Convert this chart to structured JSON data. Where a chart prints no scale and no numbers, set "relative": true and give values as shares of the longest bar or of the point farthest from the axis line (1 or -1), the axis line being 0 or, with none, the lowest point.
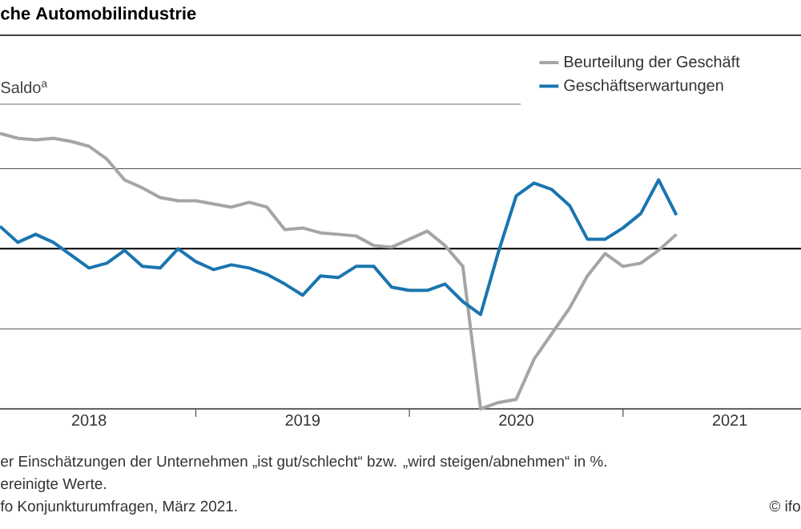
{
  "chart_data": {
    "type": "line",
    "title": "che Automobilindustrie",
    "ylabel": "Saldo$^{a}$",
    "relative": true,
    "grid": "y",
    "legend": "top right",
    "line_style": "solid",
    "marker": "none",
    "x": [
      "2018-02",
      "2018-03",
      "2018-04",
      "2018-05",
      "2018-06",
      "2018-07",
      "2018-08",
      "2018-09",
      "2018-10",
      "2018-11",
      "2018-12",
      "2019-01",
      "2019-02",
      "2019-03",
      "2019-04",
      "2019-05",
      "2019-06",
      "2019-07",
      "2019-08",
      "2019-09",
      "2019-10",
      "2019-11",
      "2019-12",
      "2020-01",
      "2020-02",
      "2020-03",
      "2020-04",
      "2020-05",
      "2020-06",
      "2020-07",
      "2020-08",
      "2020-09",
      "2020-10",
      "2020-11",
      "2020-12",
      "2021-01",
      "2021-02",
      "2021-03",
      "2021-04"
    ],
    "xlim": [
      "2018-02",
      "2021-11"
    ],
    "xticks": [
      {
        "value": "2018-07",
        "label": "2018"
      },
      {
        "value": "2019-01",
        "label": null
      },
      {
        "value": "2019-07",
        "label": "2019"
      },
      {
        "value": "2020-01",
        "label": null
      },
      {
        "value": "2020-07",
        "label": "2020"
      },
      {
        "value": "2021-01",
        "label": null
      },
      {
        "value": "2021-07",
        "label": "2021"
      }
    ],
    "series": [
      {
        "name": "Beurteilung der Geschäft",
        "color": "#a5a5a5",
        "values": [
          0.72,
          0.69,
          0.68,
          0.69,
          0.67,
          0.64,
          0.56,
          0.43,
          0.38,
          0.32,
          0.3,
          0.3,
          0.28,
          0.26,
          0.29,
          0.26,
          0.12,
          0.13,
          0.1,
          0.09,
          0.08,
          0.02,
          0.01,
          0.06,
          0.11,
          0.02,
          -0.11,
          -1.0,
          -0.96,
          -0.94,
          -0.69,
          -0.53,
          -0.37,
          -0.17,
          -0.03,
          -0.11,
          -0.09,
          -0.01,
          0.09
        ]
      },
      {
        "name": "Geschäftserwartungen",
        "color": "#1a75b0",
        "values": [
          0.14,
          0.04,
          0.09,
          0.04,
          -0.04,
          -0.12,
          -0.09,
          -0.01,
          -0.11,
          -0.12,
          0.0,
          -0.08,
          -0.13,
          -0.1,
          -0.12,
          -0.16,
          -0.22,
          -0.29,
          -0.17,
          -0.18,
          -0.11,
          -0.11,
          -0.24,
          -0.26,
          -0.26,
          -0.22,
          -0.33,
          -0.41,
          -0.02,
          0.33,
          0.41,
          0.37,
          0.27,
          0.06,
          0.06,
          0.13,
          0.22,
          0.43,
          0.21
        ]
      }
    ],
    "annotations": [
      "er Einschätzungen der Unternehmen „ist gut/schlecht“ bzw. „wird steigen/abnehmen“ in %.",
      "ereinigte Werte.",
      "fo Konjunkturumfragen, März 2021.",
      "© ifo"
    ]
  }
}
